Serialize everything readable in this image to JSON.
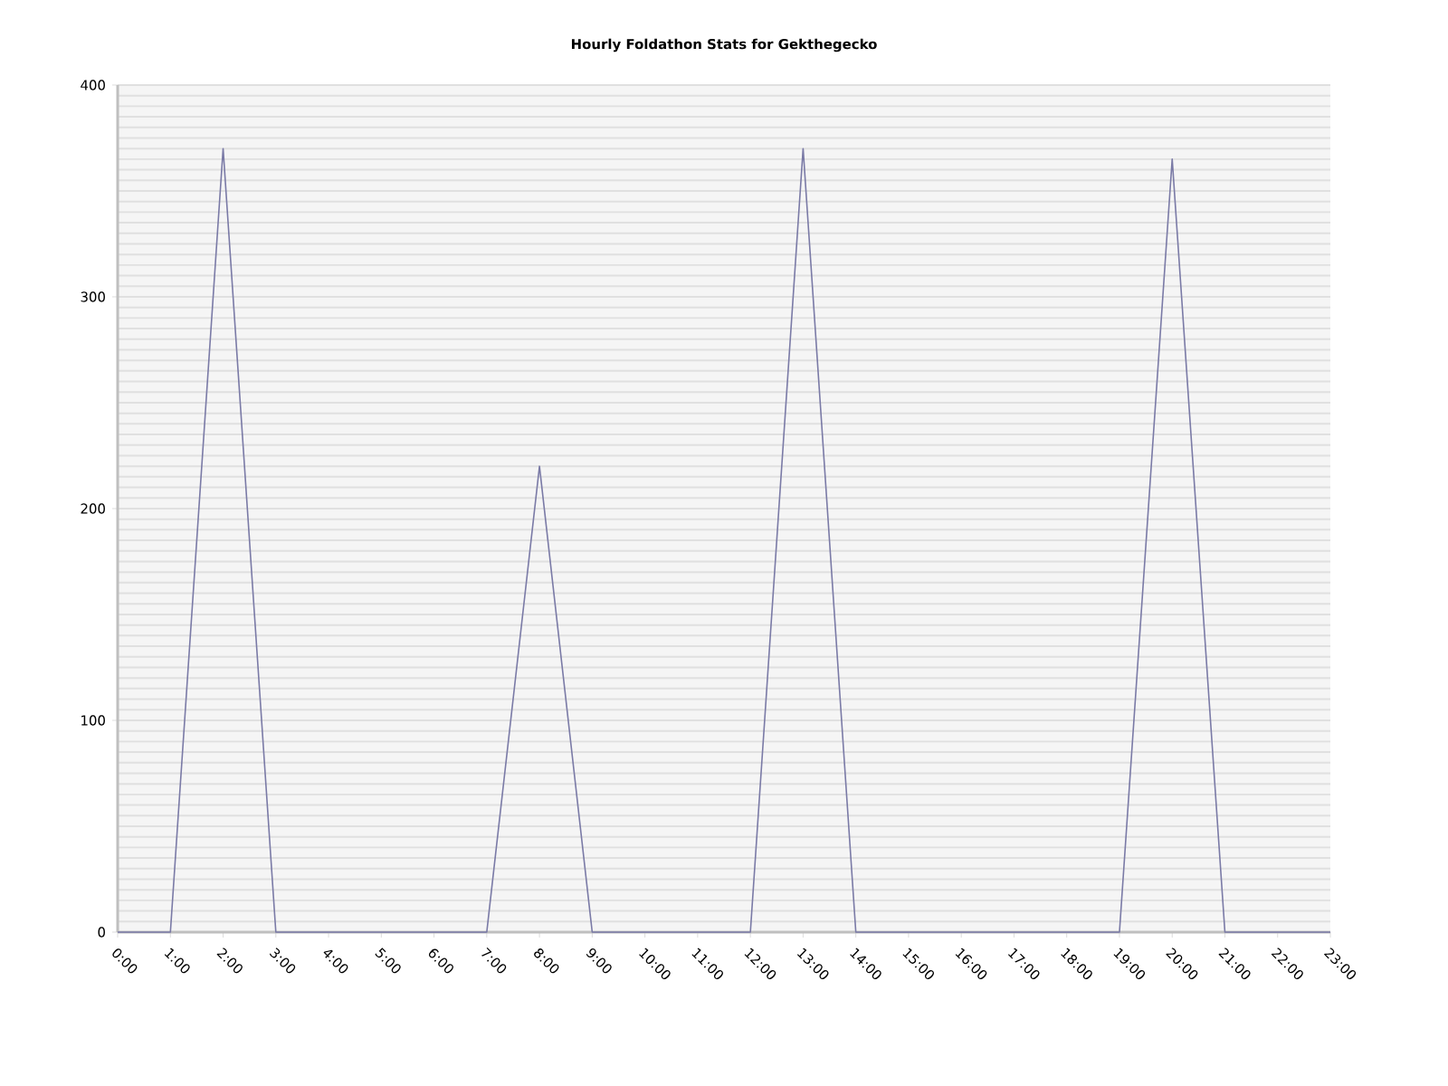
{
  "chart_data": {
    "type": "line",
    "title": "Hourly Foldathon Stats for Gekthegecko",
    "categories": [
      "0:00",
      "1:00",
      "2:00",
      "3:00",
      "4:00",
      "5:00",
      "6:00",
      "7:00",
      "8:00",
      "9:00",
      "10:00",
      "11:00",
      "12:00",
      "13:00",
      "14:00",
      "15:00",
      "16:00",
      "17:00",
      "18:00",
      "19:00",
      "20:00",
      "21:00",
      "22:00",
      "23:00"
    ],
    "values": [
      0,
      0,
      370,
      0,
      0,
      0,
      0,
      0,
      220,
      0,
      0,
      0,
      0,
      370,
      0,
      0,
      0,
      0,
      0,
      0,
      365,
      0,
      0,
      0
    ],
    "color": "#7a7aa6",
    "ylim": [
      0,
      400
    ],
    "yticks": [
      0,
      100,
      200,
      300,
      400
    ],
    "grid": "y",
    "marker": "none",
    "line_style": "solid"
  }
}
